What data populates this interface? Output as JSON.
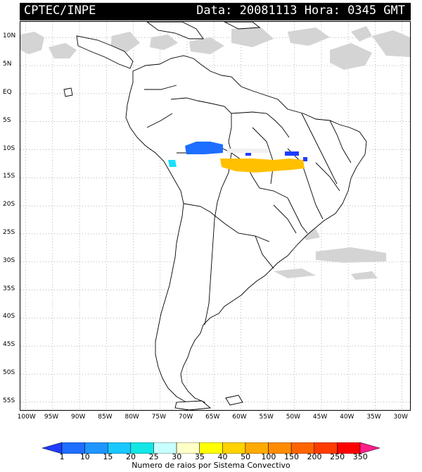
{
  "header": {
    "org": "CPTEC/INPE",
    "datetime": "Data: 20081113 Hora: 0345 GMT"
  },
  "map": {
    "lat_labels": [
      "10N",
      "5N",
      "EQ",
      "5S",
      "10S",
      "15S",
      "20S",
      "25S",
      "30S",
      "35S",
      "40S",
      "45S",
      "50S",
      "55S"
    ],
    "lon_labels": [
      "100W",
      "95W",
      "90W",
      "85W",
      "80W",
      "75W",
      "70W",
      "65W",
      "60W",
      "55W",
      "50W",
      "45W",
      "40W",
      "35W",
      "30W"
    ],
    "lat_values": [
      10,
      5,
      0,
      -5,
      -10,
      -15,
      -20,
      -25,
      -30,
      -35,
      -40,
      -45,
      -50,
      -55
    ],
    "lon_values": [
      -100,
      -95,
      -90,
      -85,
      -80,
      -75,
      -70,
      -65,
      -60,
      -55,
      -50,
      -45,
      -40,
      -35,
      -30
    ]
  },
  "colorbar": {
    "caption": "Numero de raios por Sistema Convectivo",
    "ticks": [
      "1",
      "10",
      "15",
      "20",
      "25",
      "30",
      "35",
      "40",
      "50",
      "100",
      "150",
      "200",
      "250",
      "350"
    ],
    "colors": [
      "#1e3cff",
      "#1e6eff",
      "#1e96ff",
      "#18c8ff",
      "#14e6e6",
      "#c8ffff",
      "#ffffc8",
      "#ffff00",
      "#ffd200",
      "#ffaa00",
      "#ff8c00",
      "#ff6400",
      "#ff3c00",
      "#ff0000",
      "#ff1e8c"
    ]
  }
}
